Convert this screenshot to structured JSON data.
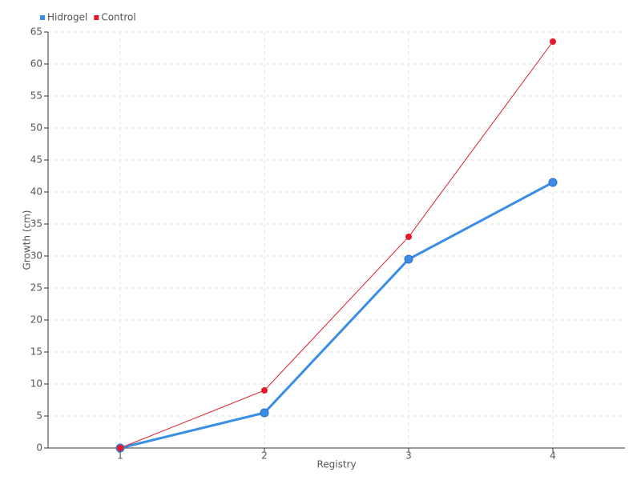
{
  "chart_data": {
    "type": "line",
    "x_label": "Registry",
    "y_label": "Growth (cm)",
    "categories": [
      "1",
      "2",
      "3",
      "4"
    ],
    "series": [
      {
        "name": "Hidrogel",
        "color": "#3a8ee6",
        "values": [
          0,
          5.5,
          29.5,
          41.5
        ]
      },
      {
        "name": "Control",
        "color": "#e31a2c",
        "values": [
          0,
          9,
          33,
          63.5
        ]
      }
    ],
    "ylim": [
      0,
      65
    ],
    "yticks": [
      0,
      5,
      10,
      15,
      20,
      25,
      30,
      35,
      40,
      45,
      50,
      55,
      60,
      65
    ],
    "grid": true,
    "legend": "top-left"
  }
}
